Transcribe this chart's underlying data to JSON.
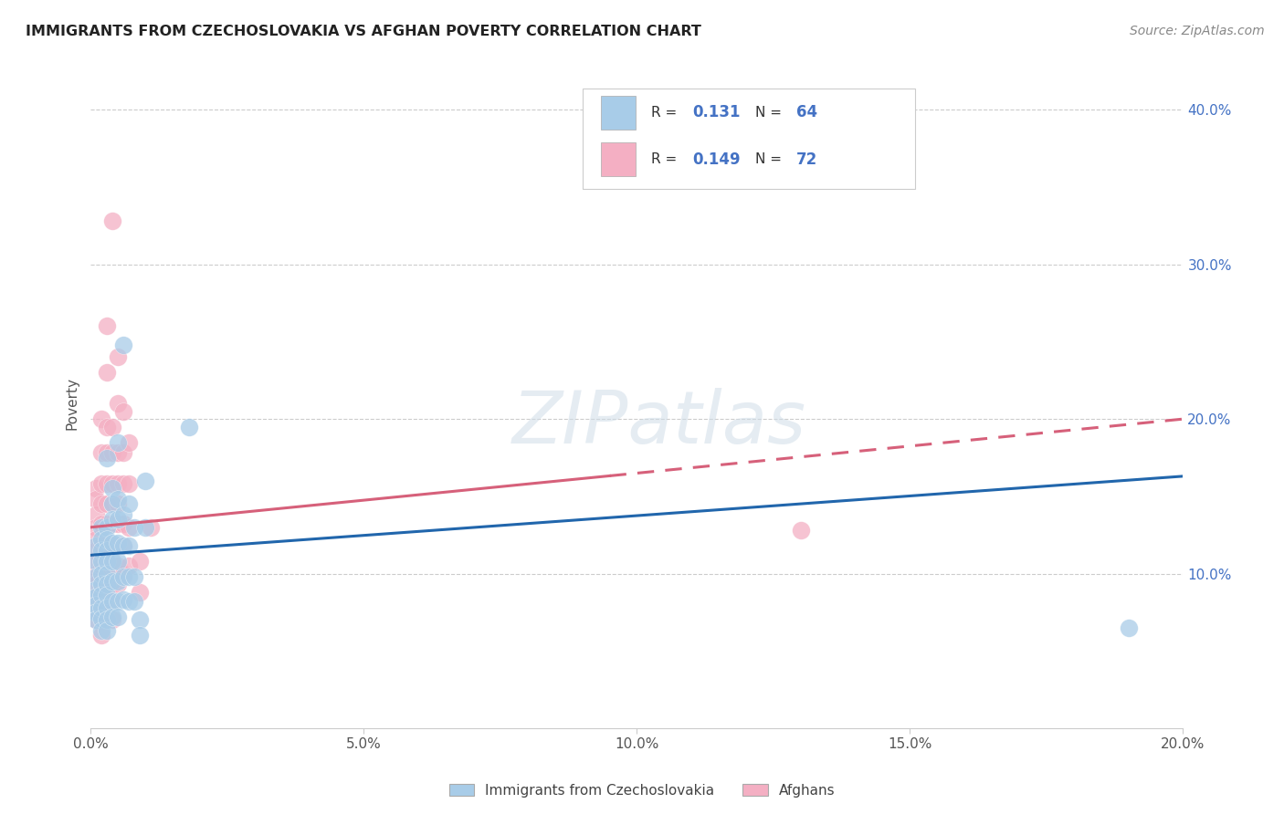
{
  "title": "IMMIGRANTS FROM CZECHOSLOVAKIA VS AFGHAN POVERTY CORRELATION CHART",
  "source": "Source: ZipAtlas.com",
  "ylabel": "Poverty",
  "xlim": [
    0.0,
    0.2
  ],
  "ylim": [
    0.0,
    0.42
  ],
  "blue_R": 0.131,
  "blue_N": 64,
  "pink_R": 0.149,
  "pink_N": 72,
  "blue_color": "#a8cce8",
  "pink_color": "#f4afc3",
  "blue_line_color": "#2166ac",
  "pink_line_color": "#d6607a",
  "legend_label_blue": "Immigrants from Czechoslovakia",
  "legend_label_pink": "Afghans",
  "blue_scatter": [
    [
      0.001,
      0.118
    ],
    [
      0.001,
      0.108
    ],
    [
      0.001,
      0.098
    ],
    [
      0.001,
      0.09
    ],
    [
      0.001,
      0.085
    ],
    [
      0.001,
      0.08
    ],
    [
      0.001,
      0.075
    ],
    [
      0.001,
      0.07
    ],
    [
      0.002,
      0.13
    ],
    [
      0.002,
      0.122
    ],
    [
      0.002,
      0.115
    ],
    [
      0.002,
      0.108
    ],
    [
      0.002,
      0.1
    ],
    [
      0.002,
      0.093
    ],
    [
      0.002,
      0.086
    ],
    [
      0.002,
      0.078
    ],
    [
      0.002,
      0.071
    ],
    [
      0.002,
      0.063
    ],
    [
      0.003,
      0.175
    ],
    [
      0.003,
      0.13
    ],
    [
      0.003,
      0.122
    ],
    [
      0.003,
      0.115
    ],
    [
      0.003,
      0.108
    ],
    [
      0.003,
      0.1
    ],
    [
      0.003,
      0.093
    ],
    [
      0.003,
      0.086
    ],
    [
      0.003,
      0.078
    ],
    [
      0.003,
      0.07
    ],
    [
      0.003,
      0.063
    ],
    [
      0.004,
      0.155
    ],
    [
      0.004,
      0.145
    ],
    [
      0.004,
      0.135
    ],
    [
      0.004,
      0.12
    ],
    [
      0.004,
      0.108
    ],
    [
      0.004,
      0.095
    ],
    [
      0.004,
      0.082
    ],
    [
      0.004,
      0.072
    ],
    [
      0.005,
      0.185
    ],
    [
      0.005,
      0.148
    ],
    [
      0.005,
      0.135
    ],
    [
      0.005,
      0.12
    ],
    [
      0.005,
      0.108
    ],
    [
      0.005,
      0.095
    ],
    [
      0.005,
      0.082
    ],
    [
      0.005,
      0.072
    ],
    [
      0.006,
      0.248
    ],
    [
      0.006,
      0.138
    ],
    [
      0.006,
      0.118
    ],
    [
      0.006,
      0.098
    ],
    [
      0.006,
      0.083
    ],
    [
      0.007,
      0.145
    ],
    [
      0.007,
      0.118
    ],
    [
      0.007,
      0.098
    ],
    [
      0.007,
      0.082
    ],
    [
      0.008,
      0.13
    ],
    [
      0.008,
      0.098
    ],
    [
      0.008,
      0.082
    ],
    [
      0.009,
      0.07
    ],
    [
      0.009,
      0.06
    ],
    [
      0.01,
      0.16
    ],
    [
      0.01,
      0.13
    ],
    [
      0.018,
      0.195
    ],
    [
      0.19,
      0.065
    ]
  ],
  "pink_scatter": [
    [
      0.001,
      0.155
    ],
    [
      0.001,
      0.148
    ],
    [
      0.001,
      0.138
    ],
    [
      0.001,
      0.13
    ],
    [
      0.001,
      0.122
    ],
    [
      0.001,
      0.115
    ],
    [
      0.001,
      0.108
    ],
    [
      0.001,
      0.1
    ],
    [
      0.001,
      0.093
    ],
    [
      0.001,
      0.086
    ],
    [
      0.001,
      0.078
    ],
    [
      0.001,
      0.07
    ],
    [
      0.002,
      0.2
    ],
    [
      0.002,
      0.178
    ],
    [
      0.002,
      0.158
    ],
    [
      0.002,
      0.145
    ],
    [
      0.002,
      0.132
    ],
    [
      0.002,
      0.118
    ],
    [
      0.002,
      0.105
    ],
    [
      0.002,
      0.093
    ],
    [
      0.002,
      0.082
    ],
    [
      0.002,
      0.07
    ],
    [
      0.002,
      0.06
    ],
    [
      0.003,
      0.26
    ],
    [
      0.003,
      0.23
    ],
    [
      0.003,
      0.195
    ],
    [
      0.003,
      0.178
    ],
    [
      0.003,
      0.158
    ],
    [
      0.003,
      0.145
    ],
    [
      0.003,
      0.132
    ],
    [
      0.003,
      0.118
    ],
    [
      0.003,
      0.105
    ],
    [
      0.003,
      0.093
    ],
    [
      0.003,
      0.082
    ],
    [
      0.003,
      0.07
    ],
    [
      0.004,
      0.328
    ],
    [
      0.004,
      0.195
    ],
    [
      0.004,
      0.178
    ],
    [
      0.004,
      0.158
    ],
    [
      0.004,
      0.145
    ],
    [
      0.004,
      0.132
    ],
    [
      0.004,
      0.118
    ],
    [
      0.004,
      0.105
    ],
    [
      0.004,
      0.093
    ],
    [
      0.004,
      0.082
    ],
    [
      0.004,
      0.07
    ],
    [
      0.005,
      0.24
    ],
    [
      0.005,
      0.21
    ],
    [
      0.005,
      0.178
    ],
    [
      0.005,
      0.158
    ],
    [
      0.005,
      0.145
    ],
    [
      0.005,
      0.132
    ],
    [
      0.005,
      0.118
    ],
    [
      0.005,
      0.105
    ],
    [
      0.005,
      0.093
    ],
    [
      0.006,
      0.205
    ],
    [
      0.006,
      0.178
    ],
    [
      0.006,
      0.158
    ],
    [
      0.006,
      0.132
    ],
    [
      0.006,
      0.118
    ],
    [
      0.006,
      0.1
    ],
    [
      0.007,
      0.185
    ],
    [
      0.007,
      0.158
    ],
    [
      0.007,
      0.13
    ],
    [
      0.007,
      0.105
    ],
    [
      0.009,
      0.108
    ],
    [
      0.009,
      0.088
    ],
    [
      0.011,
      0.13
    ],
    [
      0.13,
      0.128
    ]
  ],
  "blue_line_x0": 0.0,
  "blue_line_y0": 0.112,
  "blue_line_x1": 0.2,
  "blue_line_y1": 0.163,
  "pink_line_x0": 0.0,
  "pink_line_y0": 0.13,
  "pink_line_x1": 0.2,
  "pink_line_y1": 0.2
}
